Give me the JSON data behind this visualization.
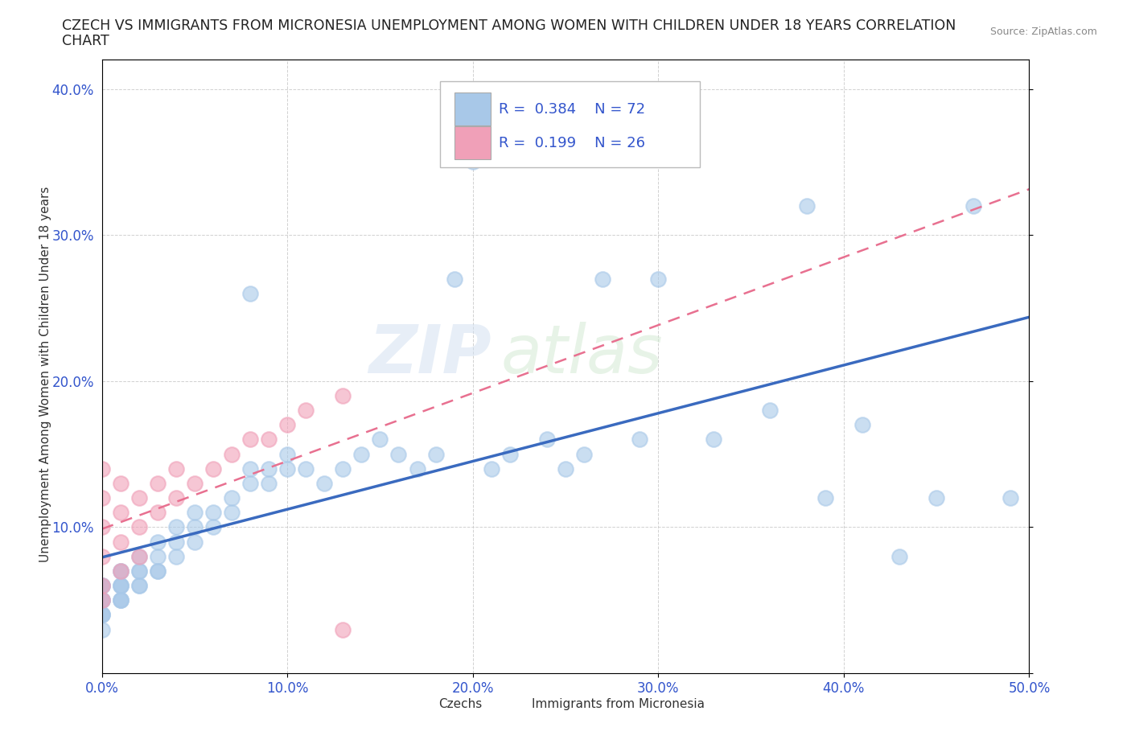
{
  "title_line1": "CZECH VS IMMIGRANTS FROM MICRONESIA UNEMPLOYMENT AMONG WOMEN WITH CHILDREN UNDER 18 YEARS CORRELATION",
  "title_line2": "CHART",
  "source": "Source: ZipAtlas.com",
  "ylabel": "Unemployment Among Women with Children Under 18 years",
  "xlim": [
    0.0,
    0.5
  ],
  "ylim": [
    0.0,
    0.42
  ],
  "xticks": [
    0.0,
    0.1,
    0.2,
    0.3,
    0.4,
    0.5
  ],
  "yticks": [
    0.0,
    0.1,
    0.2,
    0.3,
    0.4
  ],
  "xtick_labels": [
    "0.0%",
    "10.0%",
    "20.0%",
    "30.0%",
    "40.0%",
    "50.0%"
  ],
  "ytick_labels": [
    "",
    "10.0%",
    "20.0%",
    "30.0%",
    "40.0%"
  ],
  "czech_color": "#a8c8e8",
  "micronesia_color": "#f0a0b8",
  "czech_line_color": "#3a6abf",
  "micronesia_line_color": "#e87090",
  "watermark_zip": "ZIP",
  "watermark_atlas": "atlas",
  "legend_text_color": "#3355cc",
  "czech_x": [
    0.0,
    0.0,
    0.0,
    0.0,
    0.0,
    0.0,
    0.0,
    0.0,
    0.0,
    0.0,
    0.01,
    0.01,
    0.01,
    0.01,
    0.01,
    0.01,
    0.01,
    0.01,
    0.02,
    0.02,
    0.02,
    0.02,
    0.02,
    0.03,
    0.03,
    0.03,
    0.03,
    0.04,
    0.04,
    0.04,
    0.05,
    0.05,
    0.05,
    0.06,
    0.06,
    0.07,
    0.07,
    0.08,
    0.08,
    0.08,
    0.09,
    0.09,
    0.1,
    0.1,
    0.11,
    0.12,
    0.13,
    0.14,
    0.15,
    0.16,
    0.17,
    0.18,
    0.19,
    0.2,
    0.21,
    0.22,
    0.24,
    0.25,
    0.26,
    0.27,
    0.29,
    0.3,
    0.33,
    0.36,
    0.38,
    0.39,
    0.41,
    0.43,
    0.45,
    0.47,
    0.49
  ],
  "czech_y": [
    0.05,
    0.06,
    0.04,
    0.05,
    0.06,
    0.04,
    0.03,
    0.05,
    0.06,
    0.04,
    0.05,
    0.06,
    0.07,
    0.06,
    0.05,
    0.07,
    0.05,
    0.06,
    0.06,
    0.07,
    0.08,
    0.06,
    0.07,
    0.07,
    0.08,
    0.09,
    0.07,
    0.09,
    0.1,
    0.08,
    0.1,
    0.11,
    0.09,
    0.11,
    0.1,
    0.12,
    0.11,
    0.14,
    0.26,
    0.13,
    0.14,
    0.13,
    0.15,
    0.14,
    0.14,
    0.13,
    0.14,
    0.15,
    0.16,
    0.15,
    0.14,
    0.15,
    0.27,
    0.35,
    0.14,
    0.15,
    0.16,
    0.14,
    0.15,
    0.27,
    0.16,
    0.27,
    0.16,
    0.18,
    0.32,
    0.12,
    0.17,
    0.08,
    0.12,
    0.32,
    0.12
  ],
  "micronesia_x": [
    0.0,
    0.0,
    0.0,
    0.0,
    0.0,
    0.01,
    0.01,
    0.01,
    0.02,
    0.02,
    0.03,
    0.03,
    0.04,
    0.04,
    0.05,
    0.06,
    0.07,
    0.08,
    0.09,
    0.1,
    0.11,
    0.13,
    0.0,
    0.01,
    0.02,
    0.13
  ],
  "micronesia_y": [
    0.06,
    0.08,
    0.1,
    0.12,
    0.14,
    0.09,
    0.11,
    0.13,
    0.1,
    0.12,
    0.11,
    0.13,
    0.12,
    0.14,
    0.13,
    0.14,
    0.15,
    0.16,
    0.16,
    0.17,
    0.18,
    0.19,
    0.05,
    0.07,
    0.08,
    0.03
  ]
}
